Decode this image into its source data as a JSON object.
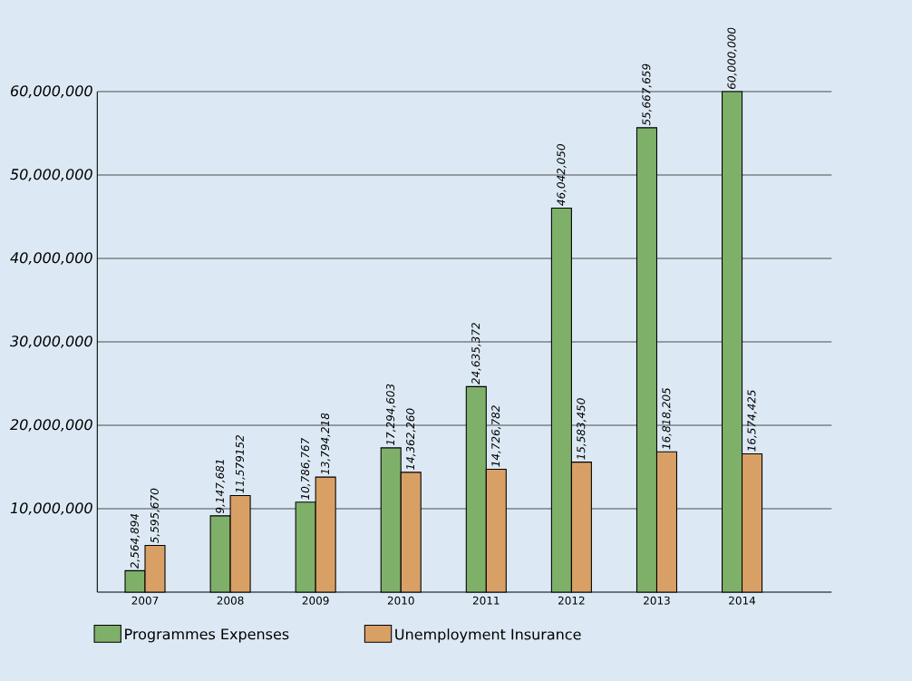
{
  "chart_data": {
    "type": "bar",
    "categories": [
      "2007",
      "2008",
      "2009",
      "2010",
      "2011",
      "2012",
      "2013",
      "2014"
    ],
    "series": [
      {
        "name": "Programmes Expenses",
        "color": "#7fb069",
        "values": [
          2564894,
          9147681,
          10786767,
          17294603,
          24635372,
          46042050,
          55667659,
          60000000
        ],
        "value_labels": [
          "2,564,894",
          "9,147,681",
          "10,786,767",
          "17,294,603",
          "24,635,372",
          "46,042,050",
          "55,667,659",
          "60,000,000"
        ]
      },
      {
        "name": "Unemployment Insurance",
        "color": "#d9a066",
        "values": [
          5595670,
          11579152,
          13794218,
          14362260,
          14726782,
          15583450,
          16818205,
          16574425
        ],
        "value_labels": [
          "5,595,670",
          "11,579152",
          "13,794,218",
          "14,362,260",
          "14,726,782",
          "15,583,450",
          "16,818,205",
          "16,574,425"
        ]
      }
    ],
    "ylim": [
      0,
      60000000
    ],
    "yticks": [
      {
        "value": 10000000,
        "label": "10,000,000"
      },
      {
        "value": 20000000,
        "label": "20,000,000"
      },
      {
        "value": 30000000,
        "label": "30,000,000"
      },
      {
        "value": 40000000,
        "label": "40,000,000"
      },
      {
        "value": 50000000,
        "label": "50,000,000"
      },
      {
        "value": 60000000,
        "label": "60,000,000"
      }
    ],
    "grid": "y",
    "legend": "bottom"
  }
}
